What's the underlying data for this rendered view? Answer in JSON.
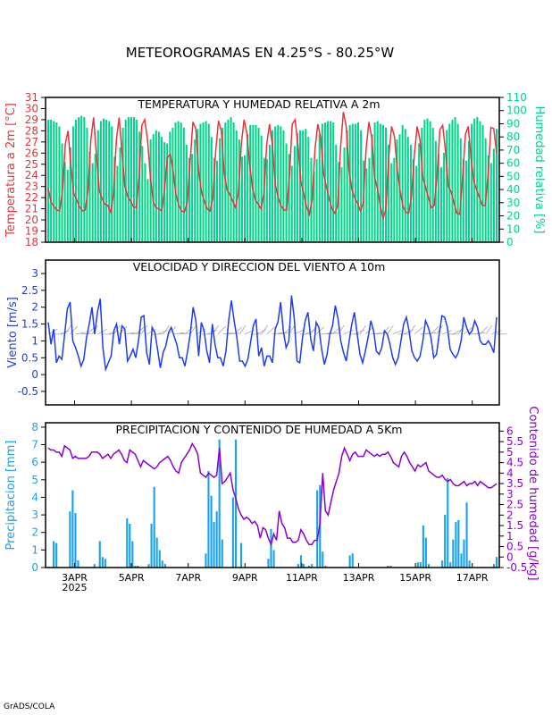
{
  "title": "METEOROGRAMAS EN 4.25°S - 80.25°W",
  "footer": "GrADS/COLA",
  "colors": {
    "temp": "#e8333a",
    "humidity": "#00d48a",
    "wind": "#1e3cf0",
    "wind_barb": "#999999",
    "precip": "#1aa3e8",
    "moisture": "#8b00d4"
  },
  "x_axis": {
    "tick_labels": [
      {
        "label": "3APR",
        "year": "2025",
        "day": 3
      },
      {
        "label": "5APR",
        "day": 5
      },
      {
        "label": "7APR",
        "day": 7
      },
      {
        "label": "9APR",
        "day": 9
      },
      {
        "label": "11APR",
        "day": 11
      },
      {
        "label": "13APR",
        "day": 13
      },
      {
        "label": "15APR",
        "day": 15
      },
      {
        "label": "17APR",
        "day": 17
      }
    ]
  },
  "chart_data": [
    {
      "type": "bar+line",
      "title": "TEMPERATURA Y HUMEDAD RELATIVA A 2m",
      "ylabel_left": "Temperatura a 2m [°C]",
      "ylabel_right": "Humedad relativa [%]",
      "ylim_left": [
        18,
        31
      ],
      "ylim_right": [
        0,
        110
      ],
      "yticks_left": [
        "18",
        "19",
        "20",
        "21",
        "22",
        "23",
        "24",
        "25",
        "26",
        "27",
        "28",
        "29",
        "30",
        "31"
      ],
      "yticks_right": [
        "0",
        "10",
        "20",
        "30",
        "40",
        "50",
        "60",
        "70",
        "80",
        "90",
        "100",
        "110"
      ],
      "series": [
        {
          "kind": "line",
          "axis": "left",
          "values": [
            22.8,
            21.6,
            21.2,
            20.9,
            20.8,
            22.6,
            26.8,
            28.0,
            24.8,
            22.4,
            21.8,
            21.2,
            20.8,
            20.9,
            22.6,
            27.2,
            29.2,
            25.8,
            22.6,
            21.9,
            21.4,
            21.3,
            20.7,
            22.3,
            27.2,
            29.2,
            26.0,
            23.0,
            22.1,
            21.7,
            21.2,
            21.1,
            23.8,
            28.5,
            29.0,
            27.2,
            23.8,
            21.6,
            21.1,
            21.0,
            20.8,
            22.8,
            25.6,
            25.9,
            24.4,
            22.3,
            21.3,
            20.8,
            20.7,
            21.6,
            25.3,
            28.8,
            28.2,
            24.4,
            22.5,
            21.7,
            21.0,
            20.8,
            22.0,
            26.2,
            28.9,
            28.0,
            24.2,
            22.7,
            22.3,
            21.7,
            21.1,
            22.5,
            26.7,
            29.0,
            27.8,
            24.9,
            22.8,
            21.8,
            21.4,
            21.0,
            22.4,
            26.8,
            28.6,
            26.7,
            23.2,
            22.0,
            21.3,
            20.9,
            20.9,
            24.0,
            28.6,
            29.0,
            26.7,
            23.5,
            22.4,
            21.2,
            20.5,
            21.8,
            26.4,
            28.6,
            27.4,
            24.2,
            23.0,
            21.9,
            21.0,
            20.6,
            21.3,
            26.5,
            29.7,
            28.4,
            24.4,
            22.7,
            22.0,
            21.5,
            20.8,
            21.5,
            26.3,
            28.8,
            27.4,
            23.8,
            22.8,
            21.3,
            20.1,
            21.0,
            25.8,
            28.4,
            27.5,
            24.5,
            22.6,
            21.2,
            20.7,
            20.6,
            22.1,
            25.8,
            28.4,
            27.2,
            23.8,
            22.9,
            22.0,
            21.1,
            21.3,
            24.0,
            28.1,
            28.5,
            26.2,
            23.0,
            22.5,
            21.5,
            20.6,
            20.5,
            23.8,
            27.7,
            28.4,
            25.5,
            23.4,
            22.7,
            22.0,
            21.3,
            21.3,
            24.1,
            28.3,
            28.2,
            26.0
          ]
        },
        {
          "kind": "bar",
          "axis": "right",
          "values": [
            93,
            93,
            92,
            91,
            88,
            75,
            61,
            55,
            72,
            88,
            93,
            95,
            96,
            95,
            87,
            69,
            60,
            67,
            85,
            92,
            94,
            93,
            92,
            88,
            65,
            58,
            72,
            87,
            93,
            95,
            95,
            95,
            93,
            84,
            73,
            60,
            48,
            78,
            82,
            85,
            84,
            80,
            76,
            75,
            84,
            87,
            91,
            92,
            91,
            87,
            74,
            64,
            67,
            78,
            86,
            90,
            91,
            92,
            90,
            80,
            64,
            62,
            79,
            87,
            91,
            93,
            95,
            91,
            85,
            78,
            65,
            66,
            82,
            89,
            89,
            89,
            87,
            81,
            64,
            63,
            74,
            85,
            88,
            89,
            88,
            85,
            75,
            67,
            58,
            73,
            83,
            85,
            85,
            86,
            80,
            64,
            54,
            63,
            82,
            90,
            91,
            92,
            92,
            91,
            74,
            61,
            57,
            72,
            85,
            89,
            90,
            90,
            91,
            85,
            62,
            56,
            64,
            82,
            91,
            92,
            90,
            89,
            87,
            74,
            60,
            64,
            78,
            82,
            89,
            86,
            80,
            74,
            63,
            58,
            75,
            87,
            93,
            94,
            92,
            87,
            77,
            67,
            57,
            68,
            85,
            90,
            93,
            95,
            90,
            79,
            63,
            62,
            77,
            90,
            94,
            95,
            92,
            89,
            79,
            66,
            60,
            71,
            86
          ]
        }
      ]
    },
    {
      "type": "line",
      "title": "VELOCIDAD Y DIRECCION DEL VIENTO A 10m",
      "ylabel": "Viento [m/s]",
      "ylim": [
        -0.9,
        3.4
      ],
      "yticks": [
        "-0.5",
        "0",
        "0.5",
        "1",
        "1.5",
        "2",
        "2.5",
        "3"
      ],
      "series": [
        {
          "kind": "line",
          "values": [
            1.55,
            0.9,
            1.35,
            0.35,
            0.55,
            0.45,
            1.2,
            1.95,
            2.15,
            1.0,
            0.8,
            0.55,
            0.25,
            0.45,
            1.1,
            1.5,
            2.0,
            1.2,
            1.85,
            2.25,
            0.8,
            0.15,
            0.35,
            0.55,
            1.3,
            1.5,
            0.9,
            1.45,
            1.35,
            0.4,
            0.55,
            0.75,
            0.5,
            1.0,
            1.7,
            1.75,
            0.65,
            0.3,
            1.4,
            1.25,
            0.75,
            0.2,
            0.65,
            0.85,
            1.25,
            1.4,
            1.15,
            0.9,
            0.5,
            0.5,
            0.25,
            0.7,
            1.25,
            2.0,
            1.6,
            0.55,
            1.55,
            1.3,
            0.7,
            0.35,
            1.5,
            0.9,
            0.5,
            0.5,
            0.25,
            0.7,
            1.6,
            2.2,
            1.6,
            1.1,
            0.4,
            0.4,
            0.25,
            0.45,
            0.95,
            1.45,
            1.65,
            0.55,
            0.8,
            0.25,
            0.55,
            0.55,
            0.35,
            1.35,
            1.55,
            2.15,
            1.3,
            0.8,
            1.0,
            2.35,
            1.65,
            0.4,
            0.35,
            1.1,
            1.6,
            1.85,
            1.05,
            0.7,
            1.55,
            1.4,
            0.75,
            0.3,
            0.6,
            1.2,
            1.45,
            2.05,
            1.65,
            1.0,
            0.65,
            0.4,
            0.95,
            1.5,
            1.85,
            1.2,
            0.6,
            0.35,
            0.7,
            1.1,
            1.6,
            1.3,
            0.7,
            0.6,
            0.8,
            1.3,
            1.2,
            0.9,
            0.5,
            0.3,
            0.5,
            1.0,
            1.5,
            1.7,
            1.3,
            0.7,
            0.5,
            0.4,
            0.55,
            1.0,
            1.6,
            1.4,
            1.1,
            0.5,
            0.6,
            1.2,
            1.75,
            1.7,
            1.4,
            0.75,
            0.6,
            0.5,
            0.65,
            1.0,
            1.7,
            1.4,
            1.2,
            1.3,
            1.6,
            1.4,
            1.0,
            0.9,
            0.9,
            1.0,
            0.85,
            0.65,
            1.7
          ]
        }
      ]
    },
    {
      "type": "bar+line",
      "title": "PRECIPITACION Y CONTENIDO DE HUMEDAD A 5Km",
      "ylabel_left": "Precipitacion [mm]",
      "ylabel_right": "Contenido de humedad [g/kg]",
      "ylim_left": [
        0,
        8.25
      ],
      "ylim_right": [
        -0.5,
        6.4
      ],
      "yticks_left": [
        "0",
        "1",
        "2",
        "3",
        "4",
        "5",
        "6",
        "7",
        "8"
      ],
      "yticks_right": [
        "-0.5",
        "0",
        "0.5",
        "1",
        "1.5",
        "2",
        "2.5",
        "3",
        "3.5",
        "4",
        "4.5",
        "5",
        "5.5",
        "6"
      ],
      "series": [
        {
          "kind": "bar",
          "axis": "left",
          "values": [
            0,
            0,
            1.5,
            1.4,
            0,
            0,
            0,
            0,
            3.2,
            4.4,
            3.1,
            0.4,
            0,
            0,
            0,
            0,
            0,
            0.2,
            0,
            1.5,
            0.6,
            0.5,
            0,
            0,
            0,
            0,
            0,
            0,
            0,
            2.8,
            2.5,
            1.5,
            0.1,
            0.1,
            0,
            0,
            0,
            0.2,
            2.5,
            4.6,
            1.7,
            1.0,
            0.4,
            0.2,
            0,
            0,
            0,
            0,
            0,
            0,
            0,
            0,
            0,
            0,
            0,
            0,
            0,
            0,
            0.8,
            5.5,
            4.1,
            2.6,
            3.2,
            7.3,
            1.6,
            0,
            0,
            0,
            4.0,
            7.3,
            0,
            1.4,
            0,
            0,
            0,
            0,
            0,
            0,
            0,
            0,
            0,
            0.5,
            2.2,
            1.0,
            0,
            0,
            0,
            0,
            0,
            0,
            0,
            0,
            0.2,
            0.7,
            0.2,
            0,
            0.1,
            0.2,
            0,
            4.4,
            4.7,
            0.9,
            0.1,
            0,
            0,
            0,
            0,
            0,
            0,
            0,
            0,
            0.7,
            0.8,
            0,
            0,
            0,
            0,
            0,
            0,
            0,
            0,
            0,
            0,
            0,
            0,
            0.1,
            0.1,
            0,
            0,
            0,
            0,
            0,
            0,
            0,
            0,
            0,
            0.3,
            0.3,
            2.4,
            1.7,
            0.2,
            0,
            0,
            0,
            0,
            0.4,
            3.0,
            5.1,
            0.3,
            1.6,
            2.6,
            2.7,
            0.8,
            1.6,
            3.7,
            0.4,
            0,
            0,
            0,
            0,
            0,
            0,
            0,
            0,
            0.2,
            0.6
          ]
        },
        {
          "kind": "line",
          "axis": "right",
          "values": [
            5.2,
            5.1,
            5.1,
            5.0,
            5.0,
            4.8,
            5.3,
            5.2,
            5.1,
            4.7,
            4.8,
            4.7,
            4.7,
            4.7,
            4.7,
            4.8,
            5.0,
            5.0,
            5.0,
            4.9,
            4.7,
            4.8,
            4.9,
            4.7,
            4.9,
            5.0,
            5.1,
            4.9,
            4.6,
            4.5,
            5.1,
            5.0,
            4.9,
            4.6,
            4.3,
            4.6,
            4.5,
            4.4,
            4.3,
            4.2,
            4.3,
            4.5,
            4.6,
            4.7,
            4.8,
            4.6,
            4.3,
            4.1,
            4.0,
            4.5,
            4.7,
            4.9,
            5.1,
            5.4,
            5.2,
            4.9,
            4.0,
            3.9,
            3.8,
            4.0,
            3.9,
            3.8,
            3.9,
            5.2,
            3.5,
            3.6,
            3.8,
            4.0,
            3.2,
            2.8,
            2.3,
            2.0,
            1.8,
            1.9,
            1.8,
            1.6,
            1.7,
            1.5,
            0.9,
            1.4,
            1.3,
            0.9,
            0.6,
            1.1,
            0.8,
            2.2,
            1.6,
            1.4,
            0.9,
            0.9,
            0.7,
            0.7,
            0.8,
            1.3,
            1.1,
            0.8,
            0.6,
            0.6,
            0.8,
            0.8,
            1.6,
            4.0,
            2.2,
            2.0,
            2.6,
            3.2,
            3.6,
            4.0,
            4.8,
            5.2,
            4.9,
            4.6,
            4.9,
            5.0,
            4.8,
            4.8,
            4.8,
            5.1,
            5.0,
            4.9,
            4.8,
            4.9,
            4.8,
            4.9,
            4.9,
            5.0,
            4.8,
            4.5,
            4.4,
            4.3,
            4.8,
            5.0,
            4.8,
            4.5,
            4.3,
            4.1,
            4.4,
            4.3,
            4.4,
            4.5,
            4.1,
            4.0,
            3.9,
            3.8,
            3.8,
            3.9,
            3.7,
            3.6,
            3.7,
            3.5,
            3.4,
            3.4,
            3.5,
            3.6,
            3.4,
            3.5,
            3.5,
            3.6,
            3.4,
            3.6,
            3.5,
            3.4,
            3.3,
            3.3,
            3.4,
            3.5
          ]
        }
      ]
    }
  ]
}
